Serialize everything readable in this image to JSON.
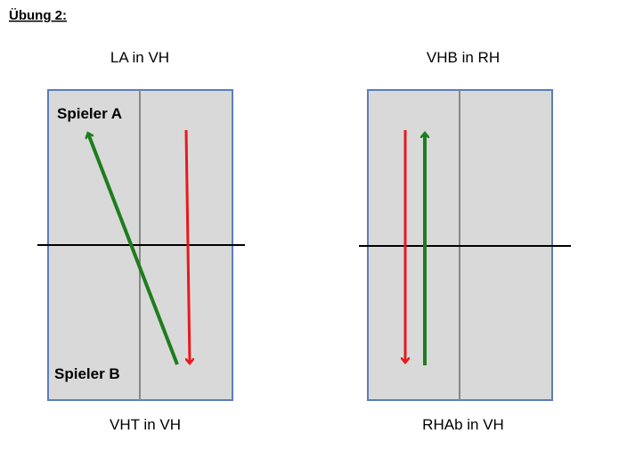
{
  "header": {
    "title": "Übung 2:"
  },
  "diagrams": [
    {
      "top_label": "LA in VH",
      "bottom_label": "VHT in VH",
      "player_top": "Spieler A",
      "player_bottom": "Spieler B"
    },
    {
      "top_label": "VHB in RH",
      "bottom_label": "RHAb in VH"
    }
  ]
}
